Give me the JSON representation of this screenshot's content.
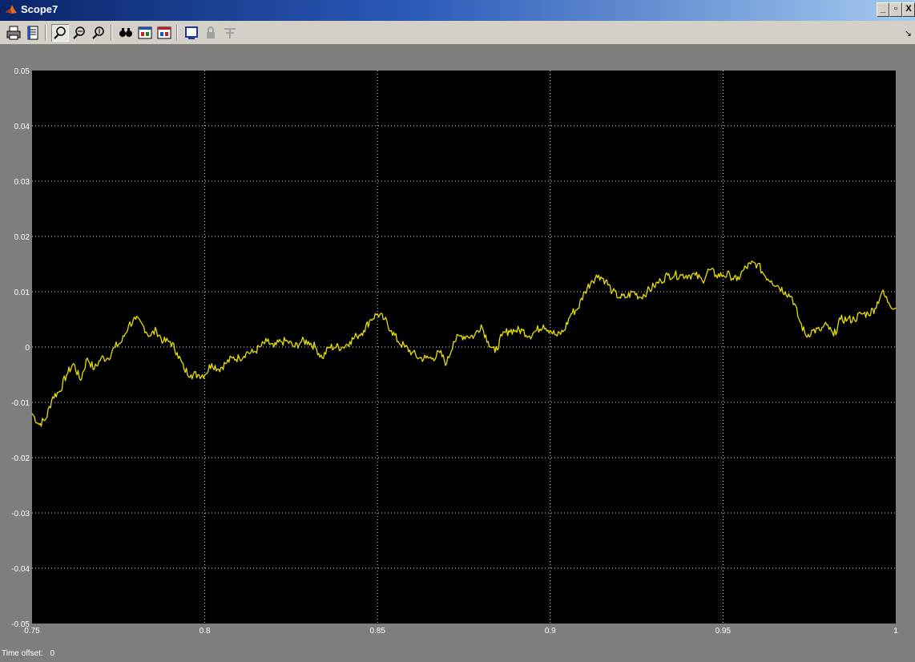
{
  "window": {
    "title": "Scope7",
    "buttons": {
      "minimize": "_",
      "maximize": "▫",
      "close": "X"
    }
  },
  "toolbar": {
    "icons": [
      "print-icon",
      "parameters-icon",
      "zoom-icon",
      "zoom-x-icon",
      "zoom-y-icon",
      "autoscale-icon",
      "save-axes-icon",
      "restore-axes-icon",
      "floating-scope-icon",
      "lock-axes-icon",
      "signal-selection-icon"
    ],
    "zoom_active": true
  },
  "status": {
    "label": "Time offset:",
    "value": "0"
  },
  "colors": {
    "plot_bg": "#000000",
    "trace": "#e8e000",
    "grid": "#d8d8d8",
    "tick_label": "#ffffff",
    "window_bg": "#7e7e7e"
  },
  "chart_data": {
    "type": "line",
    "xlim": [
      0.75,
      1
    ],
    "ylim": [
      -0.05,
      0.05
    ],
    "xticks": [
      "0.75",
      "0.8",
      "0.85",
      "0.9",
      "0.95",
      "1"
    ],
    "yticks": [
      "0.05",
      "0.04",
      "0.03",
      "0.02",
      "0.01",
      "0",
      "-0.01",
      "-0.02",
      "-0.03",
      "-0.04",
      "-0.05"
    ],
    "grid": true,
    "series": [
      {
        "color": "#e8e000",
        "x": [
          0.75,
          0.752,
          0.754,
          0.756,
          0.758,
          0.76,
          0.762,
          0.764,
          0.766,
          0.768,
          0.77,
          0.772,
          0.774,
          0.776,
          0.778,
          0.78,
          0.782,
          0.784,
          0.786,
          0.788,
          0.79,
          0.792,
          0.794,
          0.796,
          0.798,
          0.8,
          0.802,
          0.804,
          0.806,
          0.808,
          0.81,
          0.812,
          0.814,
          0.816,
          0.818,
          0.82,
          0.822,
          0.824,
          0.826,
          0.828,
          0.83,
          0.832,
          0.834,
          0.836,
          0.838,
          0.84,
          0.842,
          0.844,
          0.846,
          0.848,
          0.85,
          0.852,
          0.854,
          0.856,
          0.858,
          0.86,
          0.862,
          0.864,
          0.866,
          0.868,
          0.87,
          0.872,
          0.874,
          0.876,
          0.878,
          0.88,
          0.882,
          0.884,
          0.886,
          0.888,
          0.89,
          0.892,
          0.894,
          0.896,
          0.898,
          0.9,
          0.902,
          0.904,
          0.906,
          0.908,
          0.91,
          0.912,
          0.914,
          0.916,
          0.918,
          0.92,
          0.922,
          0.924,
          0.926,
          0.928,
          0.93,
          0.932,
          0.934,
          0.936,
          0.938,
          0.94,
          0.942,
          0.944,
          0.946,
          0.948,
          0.95,
          0.952,
          0.954,
          0.956,
          0.958,
          0.96,
          0.962,
          0.964,
          0.966,
          0.968,
          0.97,
          0.972,
          0.974,
          0.976,
          0.978,
          0.98,
          0.982,
          0.984,
          0.986,
          0.988,
          0.99,
          0.992,
          0.994,
          0.996,
          0.998,
          1.0
        ],
        "y": [
          -0.012,
          -0.014,
          -0.013,
          -0.009,
          -0.008,
          -0.005,
          -0.003,
          -0.006,
          -0.002,
          -0.004,
          -0.002,
          -0.002,
          0.0,
          0.001,
          0.004,
          0.005,
          0.004,
          0.002,
          0.003,
          0.001,
          0.001,
          -0.001,
          -0.004,
          -0.005,
          -0.005,
          -0.005,
          -0.003,
          -0.004,
          -0.003,
          -0.002,
          -0.002,
          -0.001,
          -0.001,
          0.0,
          0.001,
          0.0,
          0.001,
          0.001,
          0.0,
          0.001,
          0.001,
          0.0,
          -0.002,
          0.0,
          0.0,
          0.0,
          0.001,
          0.002,
          0.003,
          0.005,
          0.006,
          0.005,
          0.003,
          0.001,
          0.0,
          -0.001,
          -0.002,
          -0.002,
          -0.002,
          -0.001,
          -0.003,
          0.001,
          0.002,
          0.002,
          0.002,
          0.004,
          0.001,
          -0.001,
          0.002,
          0.003,
          0.003,
          0.003,
          0.002,
          0.003,
          0.004,
          0.003,
          0.002,
          0.003,
          0.006,
          0.007,
          0.01,
          0.012,
          0.013,
          0.012,
          0.01,
          0.009,
          0.009,
          0.01,
          0.009,
          0.01,
          0.011,
          0.012,
          0.013,
          0.013,
          0.013,
          0.013,
          0.013,
          0.012,
          0.014,
          0.013,
          0.013,
          0.013,
          0.012,
          0.014,
          0.015,
          0.015,
          0.013,
          0.012,
          0.011,
          0.01,
          0.009,
          0.005,
          0.002,
          0.003,
          0.003,
          0.004,
          0.002,
          0.005,
          0.005,
          0.005,
          0.006,
          0.006,
          0.007,
          0.01,
          0.008,
          0.007
        ]
      }
    ]
  }
}
